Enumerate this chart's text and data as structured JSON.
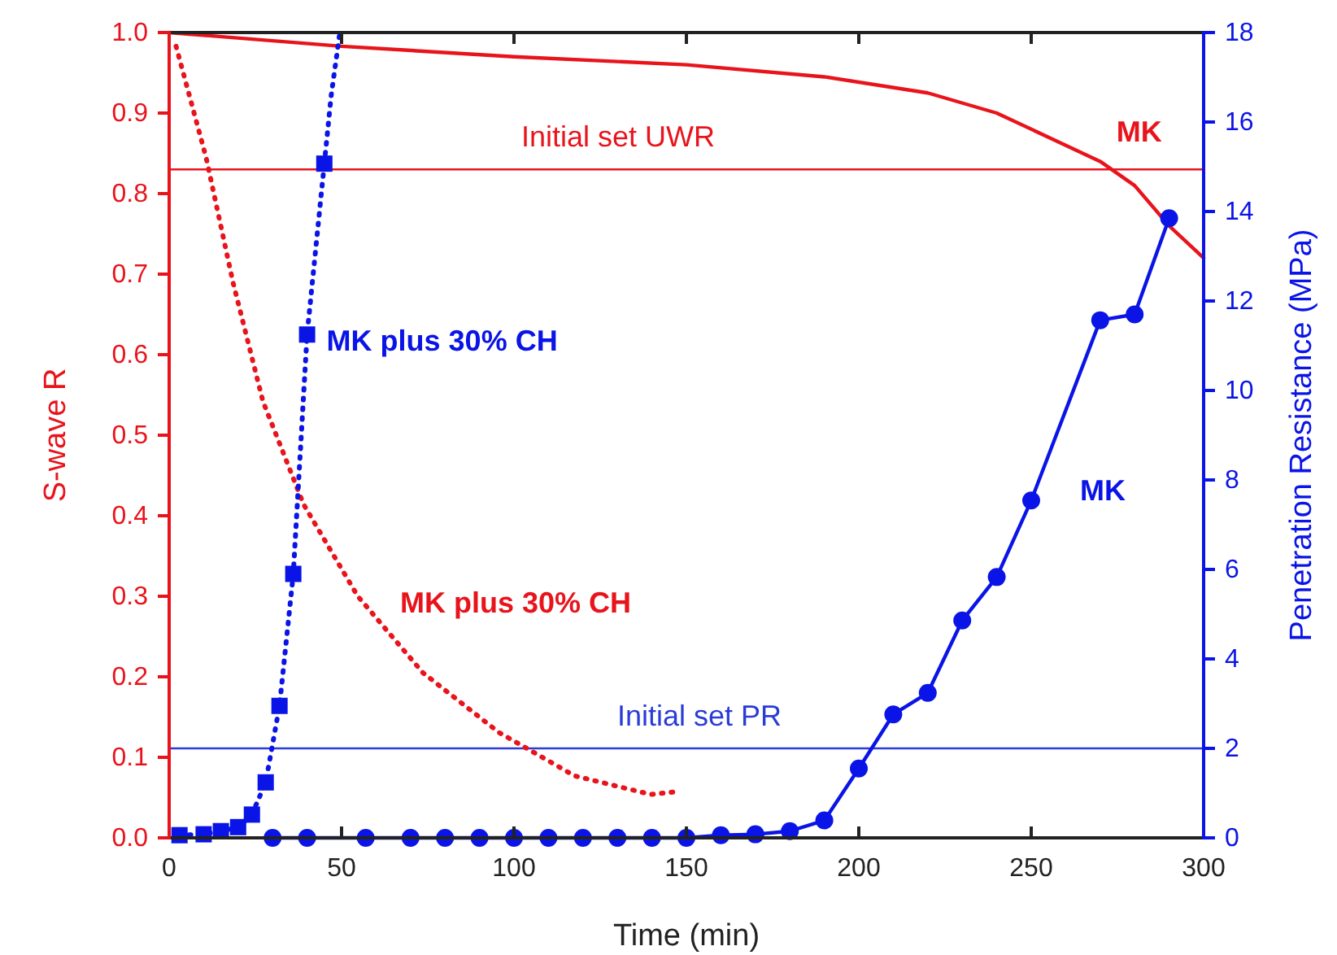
{
  "chart_data": {
    "type": "line",
    "xlabel": "Time (min)",
    "ylabel": "S-wave R",
    "y2label": "Penetration Resistance (MPa)",
    "xlim": [
      0,
      300
    ],
    "xticks": [
      0,
      50,
      100,
      150,
      200,
      250,
      300
    ],
    "ylim": [
      0,
      1
    ],
    "yticks": [
      {
        "value": 0,
        "label": "0.0"
      },
      0.1,
      0.2,
      0.3,
      0.4,
      0.5,
      0.6,
      0.7,
      0.8,
      0.9,
      {
        "value": 1,
        "label": "1.0"
      }
    ],
    "y2lim": [
      0,
      18
    ],
    "y2ticks": [
      0,
      2,
      4,
      6,
      8,
      10,
      12,
      14,
      16,
      18
    ],
    "grid": false,
    "series": [
      {
        "name": "MK",
        "color": "#e8141c",
        "line_style": "solid",
        "marker": "none",
        "x": [
          0,
          50,
          100,
          150,
          190,
          220,
          240,
          255,
          270,
          280,
          290,
          300
        ],
        "values": [
          1.0,
          0.983,
          0.97,
          0.96,
          0.945,
          0.925,
          0.9,
          0.87,
          0.84,
          0.81,
          0.76,
          0.72
        ]
      },
      {
        "name": "MK plus 30% CH",
        "color": "#e8141c",
        "line_style": "dotted",
        "marker": "none",
        "x": [
          2,
          10.7,
          18.5,
          27.2,
          39,
          54.7,
          73.6,
          95.6,
          117.6,
          139.6,
          146.7
        ],
        "values": [
          0.983,
          0.845,
          0.69,
          0.542,
          0.414,
          0.3,
          0.205,
          0.131,
          0.077,
          0.054,
          0.057
        ]
      },
      {
        "name": "MK",
        "color": "#0a14e6",
        "axis": "y2",
        "line_style": "solid",
        "marker": "circle",
        "x": [
          30,
          40,
          57,
          70,
          80,
          90,
          100,
          110,
          120,
          130,
          140,
          150,
          160,
          170,
          180,
          190,
          200,
          210,
          220,
          230,
          240,
          250,
          270,
          280,
          290
        ],
        "values": [
          0,
          0,
          0,
          0,
          0,
          0,
          0,
          0,
          0,
          0,
          0,
          0,
          0.06,
          0.08,
          0.15,
          0.39,
          1.55,
          2.76,
          3.24,
          4.86,
          5.83,
          7.54,
          11.57,
          11.7,
          13.85
        ]
      },
      {
        "name": "MK plus 30% CH",
        "color": "#0a14e6",
        "axis": "y2",
        "line_style": "dotted",
        "marker": "square",
        "x": [
          3,
          10,
          15,
          20,
          24,
          28,
          32,
          36,
          40,
          45
        ],
        "values": [
          0.06,
          0.08,
          0.15,
          0.24,
          0.52,
          1.24,
          2.95,
          5.9,
          11.25,
          15.07
        ]
      },
      {
        "color": "#0a14e6",
        "axis": "y2",
        "type": "line",
        "line_style": "dotted",
        "marker": "none",
        "x": [
          45,
          47,
          49.5
        ],
        "values": [
          15.07,
          16.6,
          18
        ]
      }
    ],
    "ref_lines": [
      {
        "axis": "y",
        "value": 0.83,
        "label": "Initial set UWR",
        "color": "#e8141c"
      },
      {
        "axis": "y2",
        "value": 2,
        "label": "Initial set PR",
        "color": "#2a3bd6"
      }
    ]
  }
}
